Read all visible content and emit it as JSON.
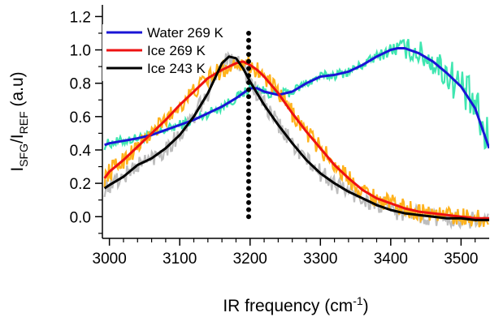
{
  "chart_data": {
    "type": "line",
    "xlabel": "IR frequency (cm",
    "xlabel_sup": "-1",
    "xlabel_tail": ")",
    "ylabel_parts": {
      "I1": "I",
      "sub1": "SFG",
      "slash": "/I",
      "sub2": "REF",
      "unit": " (a.u)"
    },
    "xlim": [
      2990,
      3540
    ],
    "ylim": [
      -0.13,
      1.27
    ],
    "xticks": [
      3000,
      3100,
      3200,
      3300,
      3400,
      3500
    ],
    "yticks": [
      0.0,
      0.2,
      0.4,
      0.6,
      0.8,
      1.0,
      1.2
    ],
    "ytick_labels": [
      "0.0",
      "0.2",
      "0.4",
      "0.6",
      "0.8",
      "1.0",
      "1.2"
    ],
    "legend_position": "top-left",
    "vertical_marker": {
      "x": 3198,
      "y_range": [
        0.0,
        1.1
      ],
      "style": "dotted",
      "color": "#000000"
    },
    "series": [
      {
        "name": "Water 269 K",
        "color": "#1a14d6",
        "raw_color": "#3fe6b0",
        "noise": 0.03,
        "noise_growth": 0.13,
        "x": [
          2993,
          3000,
          3020,
          3040,
          3060,
          3080,
          3100,
          3120,
          3140,
          3160,
          3180,
          3190,
          3200,
          3210,
          3220,
          3240,
          3260,
          3280,
          3300,
          3320,
          3340,
          3360,
          3380,
          3400,
          3410,
          3420,
          3440,
          3460,
          3480,
          3500,
          3520,
          3540
        ],
        "y": [
          0.43,
          0.44,
          0.455,
          0.47,
          0.49,
          0.52,
          0.55,
          0.58,
          0.62,
          0.66,
          0.71,
          0.74,
          0.77,
          0.77,
          0.75,
          0.73,
          0.75,
          0.8,
          0.84,
          0.85,
          0.87,
          0.91,
          0.96,
          1.0,
          1.01,
          1.01,
          0.98,
          0.93,
          0.86,
          0.78,
          0.65,
          0.41
        ]
      },
      {
        "name": "Ice 269 K",
        "color": "#ee1111",
        "raw_color": "#ffb21c",
        "noise": 0.055,
        "noise_growth": 0,
        "x": [
          2993,
          3000,
          3020,
          3040,
          3060,
          3080,
          3100,
          3120,
          3140,
          3160,
          3180,
          3190,
          3200,
          3210,
          3220,
          3240,
          3260,
          3280,
          3300,
          3320,
          3340,
          3360,
          3380,
          3400,
          3420,
          3440,
          3460,
          3480,
          3500,
          3520,
          3540
        ],
        "y": [
          0.23,
          0.27,
          0.34,
          0.42,
          0.5,
          0.58,
          0.67,
          0.75,
          0.83,
          0.88,
          0.92,
          0.93,
          0.91,
          0.88,
          0.84,
          0.74,
          0.62,
          0.51,
          0.41,
          0.31,
          0.23,
          0.16,
          0.11,
          0.08,
          0.05,
          0.03,
          0.02,
          0.01,
          0.0,
          -0.01,
          -0.01
        ]
      },
      {
        "name": "Ice 243 K",
        "color": "#000000",
        "raw_color": "#bdbdbd",
        "noise": 0.055,
        "noise_growth": 0,
        "x": [
          2993,
          3000,
          3020,
          3040,
          3060,
          3080,
          3100,
          3120,
          3140,
          3150,
          3160,
          3170,
          3180,
          3190,
          3200,
          3210,
          3220,
          3240,
          3260,
          3280,
          3300,
          3320,
          3340,
          3360,
          3380,
          3400,
          3420,
          3440,
          3460,
          3480,
          3500,
          3520,
          3540
        ],
        "y": [
          0.17,
          0.19,
          0.24,
          0.31,
          0.35,
          0.41,
          0.49,
          0.6,
          0.74,
          0.83,
          0.92,
          0.96,
          0.95,
          0.89,
          0.81,
          0.74,
          0.67,
          0.55,
          0.44,
          0.34,
          0.26,
          0.2,
          0.15,
          0.11,
          0.07,
          0.04,
          0.02,
          0.01,
          0.0,
          -0.01,
          -0.01,
          -0.02,
          -0.02
        ]
      }
    ]
  }
}
